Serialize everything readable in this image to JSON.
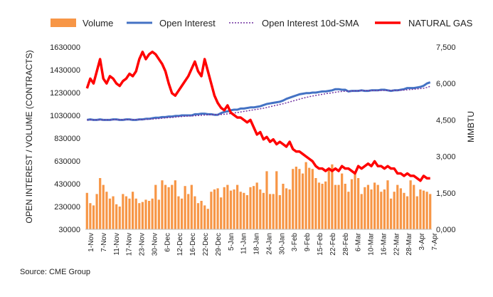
{
  "chart_data": {
    "type": "bar+line",
    "legend": {
      "position": "top",
      "items": [
        {
          "label": "Volume",
          "kind": "bar",
          "color": "#f79646"
        },
        {
          "label": "Open Interest",
          "kind": "line",
          "color": "#4472c4"
        },
        {
          "label": "Open Interest 10d-SMA",
          "kind": "dotted",
          "color": "#7030a0"
        },
        {
          "label": "NATURAL GAS",
          "kind": "line",
          "color": "#ff0000"
        }
      ]
    },
    "left_axis": {
      "title": "OPEN INTEREST / VOLUME (CONTRACTS)",
      "min": 30000,
      "max": 1630000,
      "ticks": [
        "1630000",
        "1430000",
        "1230000",
        "1030000",
        "830000",
        "630000",
        "430000",
        "230000",
        "30000"
      ]
    },
    "right_axis": {
      "title": "MMBTU",
      "min": 0,
      "max": 7.5,
      "ticks": [
        "7,500",
        "6,000",
        "4,500",
        "3,000",
        "1,500",
        "0,000"
      ]
    },
    "x_ticks": [
      "1-Nov",
      "7-Nov",
      "11-Nov",
      "17-Nov",
      "23-Nov",
      "30-Nov",
      "6-Dec",
      "12-Dec",
      "16-Dec",
      "22-Dec",
      "29-Dec",
      "5-Jan",
      "11-Jan",
      "18-Jan",
      "24-Jan",
      "30-Jan",
      "3-Feb",
      "9-Feb",
      "15-Feb",
      "22-Feb",
      "28-Feb",
      "6-Mar",
      "10-Mar",
      "16-Mar",
      "22-Mar",
      "28-Mar",
      "3-Apr",
      "7-Apr"
    ],
    "n_points": 106,
    "volume": [
      350000,
      260000,
      240000,
      340000,
      480000,
      420000,
      360000,
      300000,
      320000,
      250000,
      230000,
      340000,
      320000,
      300000,
      360000,
      300000,
      260000,
      270000,
      290000,
      280000,
      300000,
      420000,
      290000,
      460000,
      420000,
      400000,
      420000,
      460000,
      320000,
      300000,
      410000,
      340000,
      420000,
      320000,
      260000,
      280000,
      240000,
      210000,
      360000,
      380000,
      390000,
      310000,
      400000,
      420000,
      370000,
      380000,
      420000,
      360000,
      350000,
      330000,
      400000,
      410000,
      440000,
      380000,
      350000,
      540000,
      340000,
      340000,
      540000,
      330000,
      430000,
      390000,
      380000,
      560000,
      580000,
      560000,
      520000,
      620000,
      570000,
      560000,
      480000,
      440000,
      430000,
      450000,
      550000,
      600000,
      420000,
      420000,
      520000,
      430000,
      360000,
      470000,
      520000,
      480000,
      340000,
      400000,
      420000,
      380000,
      440000,
      420000,
      360000,
      380000,
      460000,
      300000,
      360000,
      420000,
      390000,
      350000,
      320000,
      460000,
      420000,
      320000,
      380000,
      370000,
      360000,
      340000
    ],
    "open_interest": [
      990000,
      995000,
      990000,
      990000,
      995000,
      990000,
      990000,
      990000,
      995000,
      995000,
      990000,
      990000,
      995000,
      995000,
      990000,
      990000,
      995000,
      995000,
      1000000,
      1000000,
      1005000,
      1010000,
      1010000,
      1015000,
      1015000,
      1020000,
      1020000,
      1025000,
      1025000,
      1030000,
      1030000,
      1030000,
      1030000,
      1040000,
      1040000,
      1045000,
      1045000,
      1040000,
      1040000,
      1035000,
      1035000,
      1050000,
      1060000,
      1065000,
      1075000,
      1080000,
      1080000,
      1090000,
      1090000,
      1095000,
      1100000,
      1100000,
      1105000,
      1110000,
      1120000,
      1130000,
      1135000,
      1140000,
      1145000,
      1150000,
      1160000,
      1175000,
      1185000,
      1195000,
      1205000,
      1215000,
      1220000,
      1225000,
      1225000,
      1230000,
      1230000,
      1235000,
      1240000,
      1240000,
      1245000,
      1250000,
      1260000,
      1260000,
      1255000,
      1255000,
      1240000,
      1245000,
      1245000,
      1245000,
      1250000,
      1245000,
      1245000,
      1250000,
      1250000,
      1250000,
      1255000,
      1255000,
      1250000,
      1245000,
      1250000,
      1250000,
      1255000,
      1260000,
      1270000,
      1270000,
      1270000,
      1275000,
      1280000,
      1290000,
      1310000,
      1320000
    ],
    "open_interest_sma": [
      990000,
      990000,
      990000,
      990000,
      990000,
      990000,
      990000,
      990000,
      992000,
      992000,
      992000,
      992000,
      993000,
      993000,
      993000,
      993000,
      993000,
      993000,
      995000,
      996000,
      998000,
      1000000,
      1002000,
      1005000,
      1008000,
      1010000,
      1012000,
      1015000,
      1018000,
      1020000,
      1022000,
      1024000,
      1025000,
      1027000,
      1029000,
      1031000,
      1033000,
      1035000,
      1036000,
      1037000,
      1037000,
      1038000,
      1040000,
      1043000,
      1047000,
      1051000,
      1055000,
      1060000,
      1065000,
      1069000,
      1074000,
      1079000,
      1083000,
      1088000,
      1093000,
      1099000,
      1106000,
      1113000,
      1119000,
      1126000,
      1132000,
      1140000,
      1148000,
      1156000,
      1164000,
      1172000,
      1180000,
      1187000,
      1194000,
      1200000,
      1205000,
      1210000,
      1215000,
      1220000,
      1224000,
      1228000,
      1233000,
      1237000,
      1240000,
      1242000,
      1243000,
      1244000,
      1245000,
      1246000,
      1247000,
      1247000,
      1247000,
      1247000,
      1248000,
      1248000,
      1249000,
      1249000,
      1249000,
      1249000,
      1249000,
      1250000,
      1251000,
      1252000,
      1254000,
      1257000,
      1259000,
      1262000,
      1265000,
      1268000,
      1275000,
      1285000
    ],
    "natural_gas": [
      5.8,
      6.2,
      6.0,
      6.5,
      7.0,
      6.2,
      6.0,
      6.3,
      6.2,
      6.0,
      5.9,
      6.1,
      6.2,
      6.4,
      6.3,
      6.5,
      7.0,
      7.3,
      7.0,
      7.2,
      7.3,
      7.2,
      7.0,
      6.8,
      6.5,
      6.0,
      5.6,
      5.5,
      5.7,
      5.9,
      6.1,
      6.3,
      6.6,
      6.9,
      6.5,
      6.3,
      7.0,
      6.5,
      6.0,
      5.5,
      5.2,
      5.0,
      4.9,
      5.1,
      4.8,
      4.7,
      4.6,
      4.6,
      4.5,
      4.4,
      4.5,
      4.2,
      3.9,
      4.0,
      3.7,
      3.8,
      3.6,
      3.7,
      3.5,
      3.6,
      3.5,
      3.4,
      3.6,
      3.3,
      3.2,
      3.2,
      3.1,
      3.0,
      2.9,
      2.8,
      2.6,
      2.5,
      2.5,
      2.4,
      2.5,
      2.4,
      2.5,
      2.4,
      2.6,
      2.5,
      2.5,
      2.4,
      2.3,
      2.6,
      2.5,
      2.6,
      2.7,
      2.6,
      2.8,
      2.6,
      2.6,
      2.5,
      2.6,
      2.5,
      2.5,
      2.3,
      2.3,
      2.2,
      2.3,
      2.2,
      2.2,
      2.1,
      2.0,
      2.2,
      2.1,
      2.1
    ]
  },
  "source": "Source: CME Group"
}
